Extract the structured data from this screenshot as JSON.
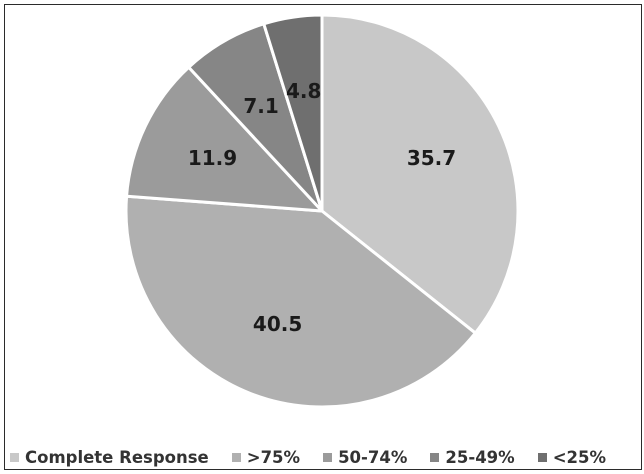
{
  "chart_data": {
    "type": "pie",
    "start_angle_deg": 0,
    "direction": "clockwise",
    "slices": [
      {
        "label": "Complete Response",
        "value": 35.7,
        "display": "35.7",
        "color": "#c8c8c8"
      },
      {
        "label": ">75%",
        "value": 40.5,
        "display": "40.5",
        "color": "#b0b0b0"
      },
      {
        "label": "50-74%",
        "value": 11.9,
        "display": "11.9",
        "color": "#9b9b9b"
      },
      {
        "label": "25-49%",
        "value": 7.1,
        "display": "7.1",
        "color": "#868686"
      },
      {
        "label": "<25%",
        "value": 4.8,
        "display": "4.8",
        "color": "#6f6f6f"
      }
    ],
    "legend_position": "bottom",
    "slice_border_color": "#ffffff"
  }
}
